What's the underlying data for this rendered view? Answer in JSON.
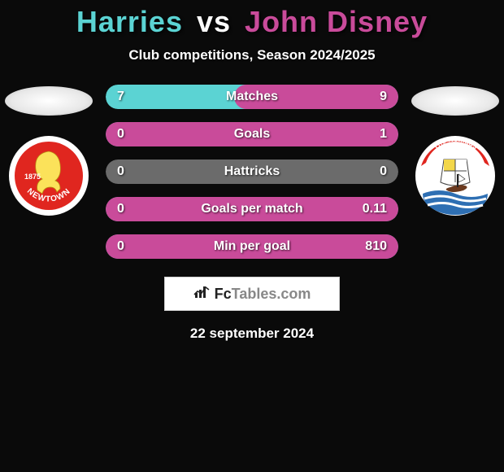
{
  "header": {
    "player1_name": "Harries",
    "vs_text": "vs",
    "player2_name": "John Disney",
    "subtitle": "Club competitions, Season 2024/2025"
  },
  "colors": {
    "player1": "#5bd3d3",
    "player2": "#c94b9a",
    "row_neutral": "#6b6b6b",
    "badge_bg": "#ffffff",
    "text": "#ffffff"
  },
  "crests": {
    "left": {
      "bg": "#ffffff",
      "inner_bg": "#e0261f",
      "text_upper": "1875",
      "text_lower": "NEWTOWN",
      "motif_color": "#fbe25a"
    },
    "right": {
      "bg": "#ffffff",
      "band_bg": "#e0261f",
      "band_text": "The Nomads",
      "wave_color": "#2e6fb3",
      "sail_color": "#222222",
      "flag_color": "#f3d74a"
    }
  },
  "stats": {
    "rows": [
      {
        "label": "Matches",
        "left": "7",
        "right": "9",
        "left_pct": 44,
        "right_pct": 56
      },
      {
        "label": "Goals",
        "left": "0",
        "right": "1",
        "left_pct": 0,
        "right_pct": 100
      },
      {
        "label": "Hattricks",
        "left": "0",
        "right": "0",
        "left_pct": 0,
        "right_pct": 0
      },
      {
        "label": "Goals per match",
        "left": "0",
        "right": "0.11",
        "left_pct": 0,
        "right_pct": 100
      },
      {
        "label": "Min per goal",
        "left": "0",
        "right": "810",
        "left_pct": 0,
        "right_pct": 100
      }
    ]
  },
  "footer": {
    "brand_prefix": "Fc",
    "brand_suffix": "Tables.com",
    "date": "22 september 2024"
  }
}
